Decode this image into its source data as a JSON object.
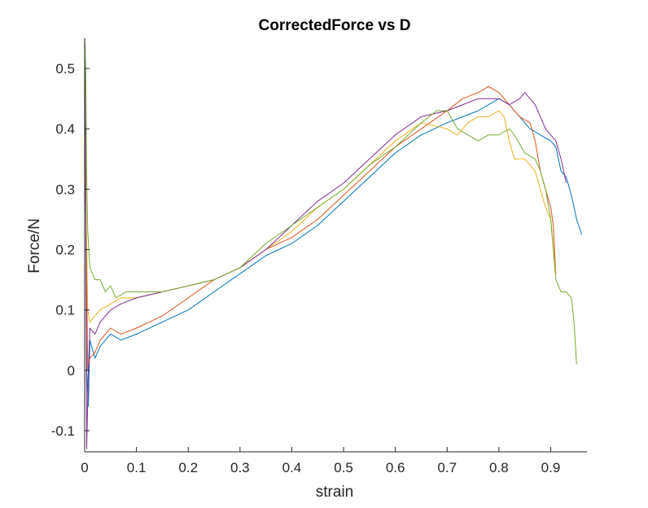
{
  "chart_data": {
    "type": "line",
    "title": "CorrectedForce vs D",
    "xlabel": "strain",
    "ylabel": "Force/N",
    "xlim": [
      0,
      0.97
    ],
    "ylim": [
      -0.135,
      0.55
    ],
    "xticks": [
      0,
      0.1,
      0.2,
      0.3,
      0.4,
      0.5,
      0.6,
      0.7,
      0.8,
      0.9
    ],
    "xtick_labels": [
      "0",
      "0.1",
      "0.2",
      "0.3",
      "0.4",
      "0.5",
      "0.6",
      "0.7",
      "0.8",
      "0.9"
    ],
    "yticks": [
      -0.1,
      0,
      0.1,
      0.2,
      0.3,
      0.4,
      0.5
    ],
    "ytick_labels": [
      "-0.1",
      "0",
      "0.1",
      "0.2",
      "0.3",
      "0.4",
      "0.5"
    ],
    "grid": false,
    "box": false,
    "series": [
      {
        "color": "#0072BD",
        "x": [
          0,
          0.002,
          0.004,
          0.007,
          0.01,
          0.02,
          0.03,
          0.05,
          0.07,
          0.1,
          0.15,
          0.2,
          0.25,
          0.3,
          0.35,
          0.4,
          0.45,
          0.5,
          0.55,
          0.6,
          0.65,
          0.7,
          0.73,
          0.76,
          0.78,
          0.8,
          0.82,
          0.84,
          0.86,
          0.88,
          0.9,
          0.91,
          0.92,
          0.93,
          0.94,
          0.95,
          0.96
        ],
        "y": [
          0.55,
          0.3,
          0.0,
          -0.06,
          0.05,
          0.02,
          0.04,
          0.06,
          0.05,
          0.06,
          0.08,
          0.1,
          0.13,
          0.16,
          0.19,
          0.21,
          0.24,
          0.28,
          0.32,
          0.36,
          0.39,
          0.41,
          0.42,
          0.43,
          0.44,
          0.45,
          0.44,
          0.42,
          0.4,
          0.39,
          0.38,
          0.37,
          0.33,
          0.32,
          0.29,
          0.25,
          0.225
        ]
      },
      {
        "color": "#D95319",
        "x": [
          0,
          0.003,
          0.006,
          0.01,
          0.02,
          0.03,
          0.05,
          0.07,
          0.1,
          0.15,
          0.2,
          0.25,
          0.3,
          0.35,
          0.4,
          0.45,
          0.5,
          0.55,
          0.6,
          0.65,
          0.7,
          0.73,
          0.76,
          0.78,
          0.8,
          0.82,
          0.84,
          0.86,
          0.87,
          0.88,
          0.89,
          0.9,
          0.905,
          0.91
        ],
        "y": [
          0.48,
          0.2,
          0.0,
          0.02,
          0.03,
          0.05,
          0.07,
          0.06,
          0.07,
          0.09,
          0.12,
          0.15,
          0.17,
          0.2,
          0.22,
          0.25,
          0.29,
          0.33,
          0.37,
          0.4,
          0.43,
          0.45,
          0.46,
          0.47,
          0.46,
          0.44,
          0.42,
          0.41,
          0.38,
          0.33,
          0.3,
          0.27,
          0.24,
          0.16
        ]
      },
      {
        "color": "#EDB120",
        "x": [
          0,
          0.003,
          0.006,
          0.01,
          0.02,
          0.03,
          0.05,
          0.07,
          0.1,
          0.15,
          0.2,
          0.25,
          0.3,
          0.35,
          0.4,
          0.45,
          0.5,
          0.55,
          0.6,
          0.65,
          0.7,
          0.72,
          0.74,
          0.76,
          0.78,
          0.8,
          0.81,
          0.82,
          0.83,
          0.85,
          0.87,
          0.89,
          0.9,
          0.91
        ],
        "y": [
          0.48,
          0.25,
          0.1,
          0.08,
          0.09,
          0.1,
          0.11,
          0.12,
          0.12,
          0.13,
          0.14,
          0.15,
          0.17,
          0.2,
          0.23,
          0.27,
          0.3,
          0.34,
          0.38,
          0.41,
          0.4,
          0.39,
          0.41,
          0.42,
          0.42,
          0.43,
          0.42,
          0.38,
          0.35,
          0.35,
          0.33,
          0.27,
          0.25,
          0.16
        ]
      },
      {
        "color": "#7E2F8E",
        "x": [
          0,
          0.002,
          0.004,
          0.007,
          0.01,
          0.02,
          0.03,
          0.05,
          0.07,
          0.1,
          0.15,
          0.2,
          0.25,
          0.3,
          0.35,
          0.4,
          0.45,
          0.5,
          0.55,
          0.6,
          0.65,
          0.7,
          0.73,
          0.76,
          0.78,
          0.8,
          0.82,
          0.84,
          0.85,
          0.87,
          0.88,
          0.89,
          0.9,
          0.91,
          0.92,
          0.93
        ],
        "y": [
          0.55,
          0.3,
          -0.13,
          0.0,
          0.07,
          0.06,
          0.08,
          0.1,
          0.11,
          0.12,
          0.13,
          0.14,
          0.15,
          0.17,
          0.2,
          0.24,
          0.28,
          0.31,
          0.35,
          0.39,
          0.42,
          0.43,
          0.44,
          0.45,
          0.45,
          0.45,
          0.44,
          0.45,
          0.46,
          0.44,
          0.42,
          0.4,
          0.39,
          0.38,
          0.35,
          0.31
        ]
      },
      {
        "color": "#77AC30",
        "x": [
          0,
          0.002,
          0.004,
          0.006,
          0.008,
          0.01,
          0.02,
          0.03,
          0.04,
          0.05,
          0.06,
          0.08,
          0.1,
          0.15,
          0.2,
          0.25,
          0.3,
          0.35,
          0.4,
          0.45,
          0.5,
          0.55,
          0.6,
          0.65,
          0.68,
          0.7,
          0.72,
          0.74,
          0.76,
          0.78,
          0.8,
          0.82,
          0.83,
          0.85,
          0.87,
          0.88,
          0.89,
          0.9,
          0.91,
          0.92,
          0.93,
          0.94,
          0.945,
          0.95
        ],
        "y": [
          0.55,
          0.5,
          0.32,
          0.23,
          0.2,
          0.17,
          0.15,
          0.15,
          0.13,
          0.14,
          0.12,
          0.13,
          0.13,
          0.13,
          0.14,
          0.15,
          0.17,
          0.21,
          0.24,
          0.27,
          0.3,
          0.34,
          0.37,
          0.41,
          0.43,
          0.43,
          0.4,
          0.39,
          0.38,
          0.39,
          0.39,
          0.4,
          0.39,
          0.36,
          0.35,
          0.33,
          0.3,
          0.25,
          0.15,
          0.13,
          0.13,
          0.12,
          0.08,
          0.01
        ]
      }
    ]
  }
}
